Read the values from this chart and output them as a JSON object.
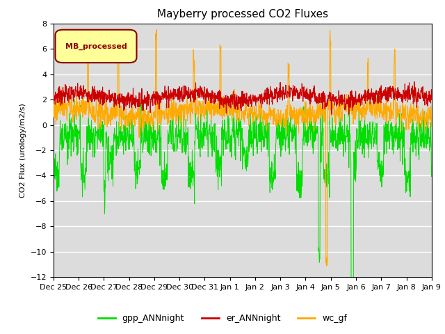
{
  "title": "Mayberry processed CO2 Fluxes",
  "ylabel": "CO2 Flux (urology/m2/s)",
  "ylim": [
    -12,
    8
  ],
  "yticks": [
    8,
    6,
    4,
    2,
    0,
    -2,
    -4,
    -6,
    -8,
    -10,
    -12
  ],
  "legend_label": "MB_processed",
  "legend_text_color": "#8b0000",
  "legend_box_facecolor": "#ffff99",
  "legend_box_edge": "#8b0000",
  "series_labels": [
    "gpp_ANNnight",
    "er_ANNnight",
    "wc_gf"
  ],
  "series_colors": [
    "#00dd00",
    "#cc0000",
    "#ffaa00"
  ],
  "background_color": "#dcdcdc",
  "n_points": 1500,
  "x_tick_labels": [
    "Dec 25",
    "Dec 26",
    "Dec 27",
    "Dec 28",
    "Dec 29",
    "Dec 30",
    "Dec 31",
    "Jan 1",
    "Jan 2",
    "Jan 3",
    "Jan 4",
    "Jan 5",
    "Jan 6",
    "Jan 7",
    "Jan 8",
    "Jan 9"
  ],
  "title_fontsize": 11,
  "axis_fontsize": 8,
  "tick_fontsize": 8
}
